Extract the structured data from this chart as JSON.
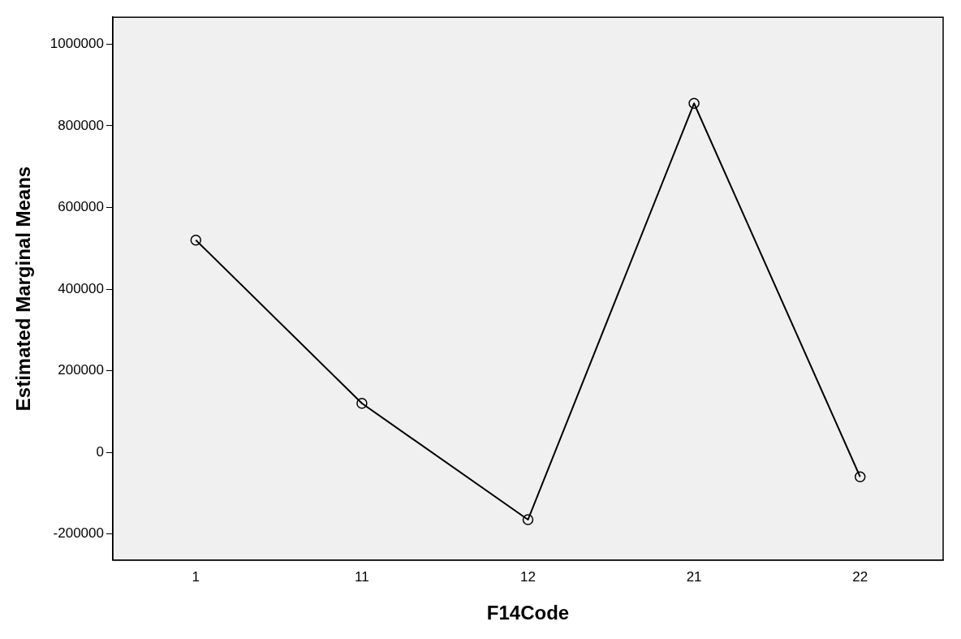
{
  "chart_data": {
    "type": "line",
    "xlabel": "F14Code",
    "ylabel": "Estimated Marginal Means",
    "categories": [
      "1",
      "11",
      "12",
      "21",
      "22"
    ],
    "values": [
      520000,
      120000,
      -165000,
      855000,
      -60000
    ],
    "color": "#000000",
    "marker": "circle",
    "ylim": [
      -264000,
      1066000
    ],
    "yticks": [
      -200000,
      0,
      200000,
      400000,
      600000,
      800000,
      1000000
    ]
  }
}
